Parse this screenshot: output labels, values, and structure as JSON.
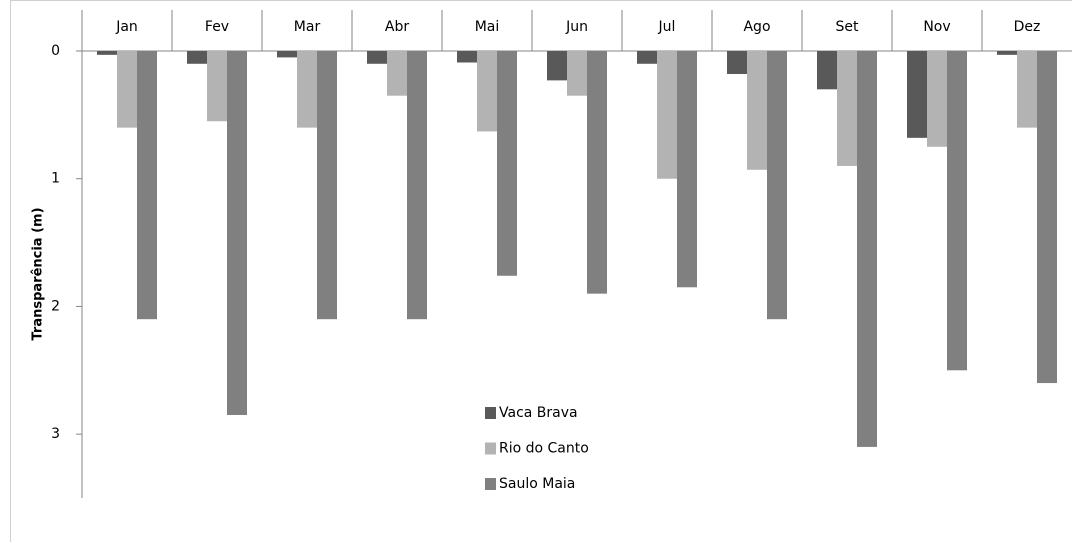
{
  "chart_data": {
    "type": "bar",
    "y_label": "Transparência (m)",
    "categories": [
      "Jan",
      "Fev",
      "Mar",
      "Abr",
      "Mai",
      "Jun",
      "Jul",
      "Ago",
      "Set",
      "Nov",
      "Dez"
    ],
    "series": [
      {
        "name": "Vaca Brava",
        "color": "#595959",
        "values": [
          0.03,
          0.1,
          0.05,
          0.1,
          0.09,
          0.23,
          0.1,
          0.18,
          0.3,
          0.68,
          0.03
        ]
      },
      {
        "name": "Rio do Canto",
        "color": "#b3b3b3",
        "values": [
          0.6,
          0.55,
          0.6,
          0.35,
          0.63,
          0.35,
          1.0,
          0.93,
          0.9,
          0.75,
          0.6
        ]
      },
      {
        "name": "Saulo Maia",
        "color": "#808080",
        "values": [
          2.1,
          2.85,
          2.1,
          2.1,
          1.76,
          1.9,
          1.85,
          2.1,
          3.1,
          2.5,
          2.6
        ]
      }
    ],
    "ylim": [
      0,
      3.5
    ],
    "yticks": [
      0,
      1,
      2,
      3
    ],
    "y_inverted": true,
    "x_axis_position": "top",
    "grid": false,
    "legend_position": "center"
  }
}
